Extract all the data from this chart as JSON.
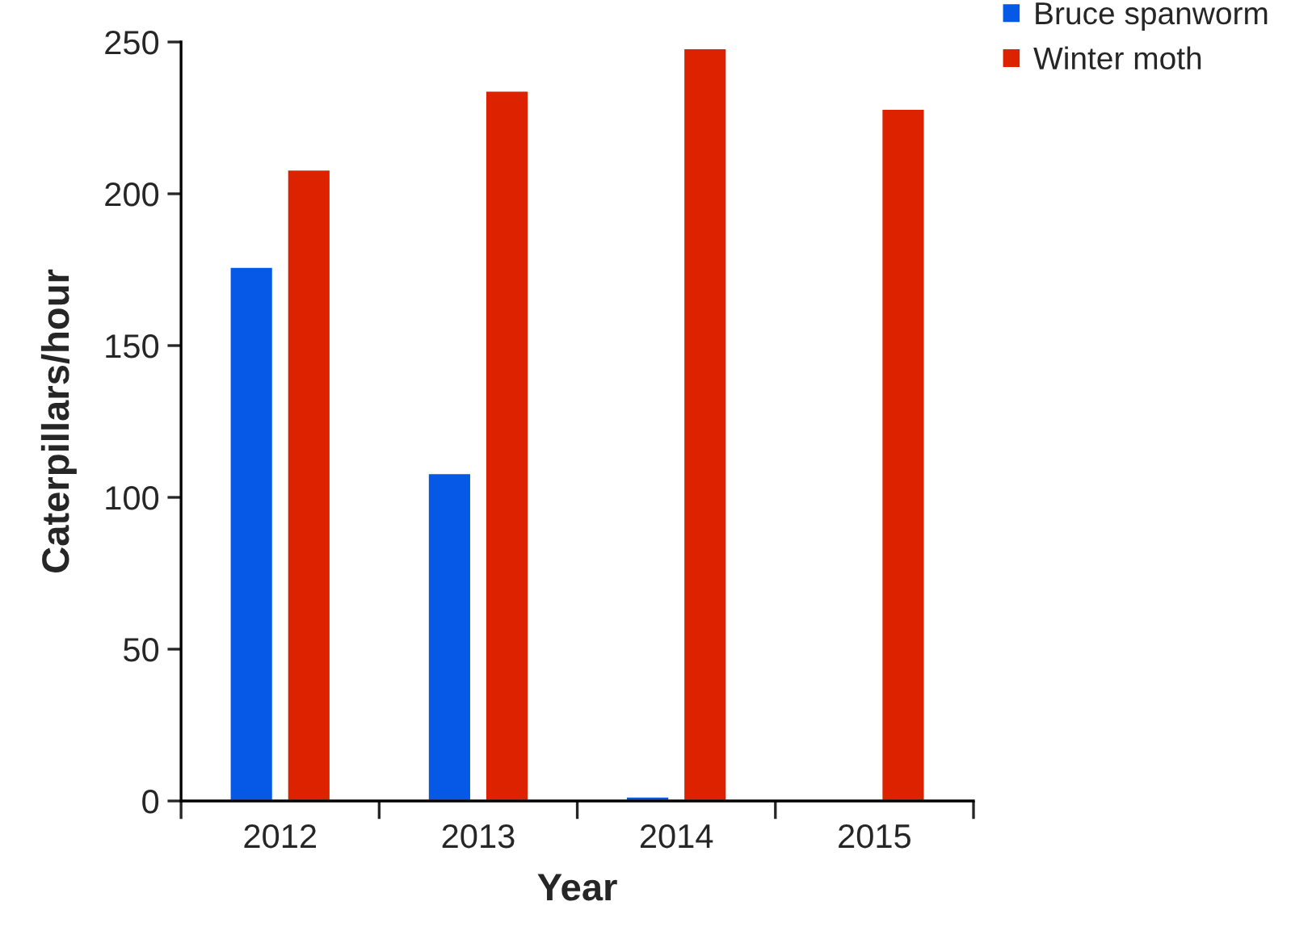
{
  "chart_data": {
    "type": "bar",
    "xlabel": "Year",
    "ylabel": "Caterpillars/hour",
    "categories": [
      "2012",
      "2013",
      "2014",
      "2015"
    ],
    "series": [
      {
        "name": "Bruce spanworm",
        "color": "#0559e6",
        "values": [
          176,
          108,
          1.5,
          null
        ]
      },
      {
        "name": "Winter moth",
        "color": "#dd2200",
        "values": [
          208,
          234,
          248,
          228
        ]
      }
    ],
    "ylim": [
      0,
      250
    ],
    "yticks": [
      0,
      50,
      100,
      150,
      200,
      250
    ],
    "grid": false,
    "legend": "top right"
  }
}
